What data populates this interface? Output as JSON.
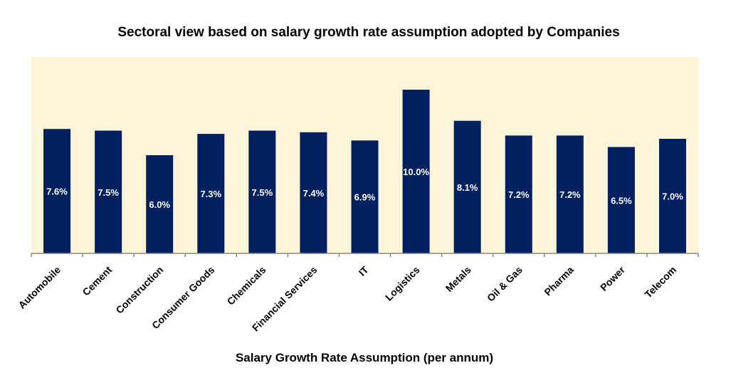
{
  "chart_data": {
    "type": "bar",
    "title": "Sectoral view based on salary growth rate assumption adopted by Companies",
    "xlabel": "Salary Growth Rate Assumption (per annum)",
    "ylabel": "",
    "categories": [
      "Automobile",
      "Cement",
      "Construction",
      "Consumer Goods",
      "Chemicals",
      "Financial Services",
      "IT",
      "Logistics",
      "Metals",
      "Oil & Gas",
      "Pharma",
      "Power",
      "Telecom"
    ],
    "values": [
      7.6,
      7.5,
      6.0,
      7.3,
      7.5,
      7.4,
      6.9,
      10.0,
      8.1,
      7.2,
      7.2,
      6.5,
      7.0
    ],
    "data_labels": [
      "7.6%",
      "7.5%",
      "6.0%",
      "7.3%",
      "7.5%",
      "7.4%",
      "6.9%",
      "10.0%",
      "8.1%",
      "7.2%",
      "7.2%",
      "6.5%",
      "7.0%"
    ],
    "ylim": [
      0,
      12
    ],
    "grid": false,
    "legend": "none",
    "colors": {
      "bar": "#002060",
      "plot_background": "#fdf5d9",
      "axis": "#888888",
      "label": "#ffffff"
    }
  }
}
